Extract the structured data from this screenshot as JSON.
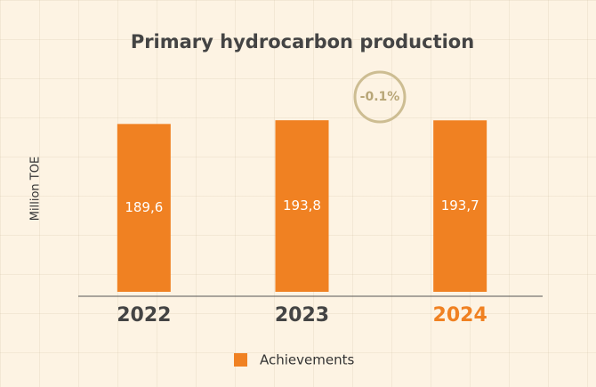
{
  "chart_data": {
    "type": "bar",
    "title": "Primary hydrocarbon production",
    "y_label": "Million TOE",
    "categories": [
      "2022",
      "2023",
      "2024"
    ],
    "series": [
      {
        "name": "Achievements",
        "color": "#f08122",
        "values": [
          189.6,
          193.8,
          193.7
        ],
        "value_labels": [
          "189,6",
          "193,8",
          "193,7"
        ]
      }
    ],
    "category_label_colors": [
      "#444444",
      "#444444",
      "#f08122"
    ],
    "annotation": "-0.1%",
    "ylim": [
      0,
      200
    ]
  }
}
